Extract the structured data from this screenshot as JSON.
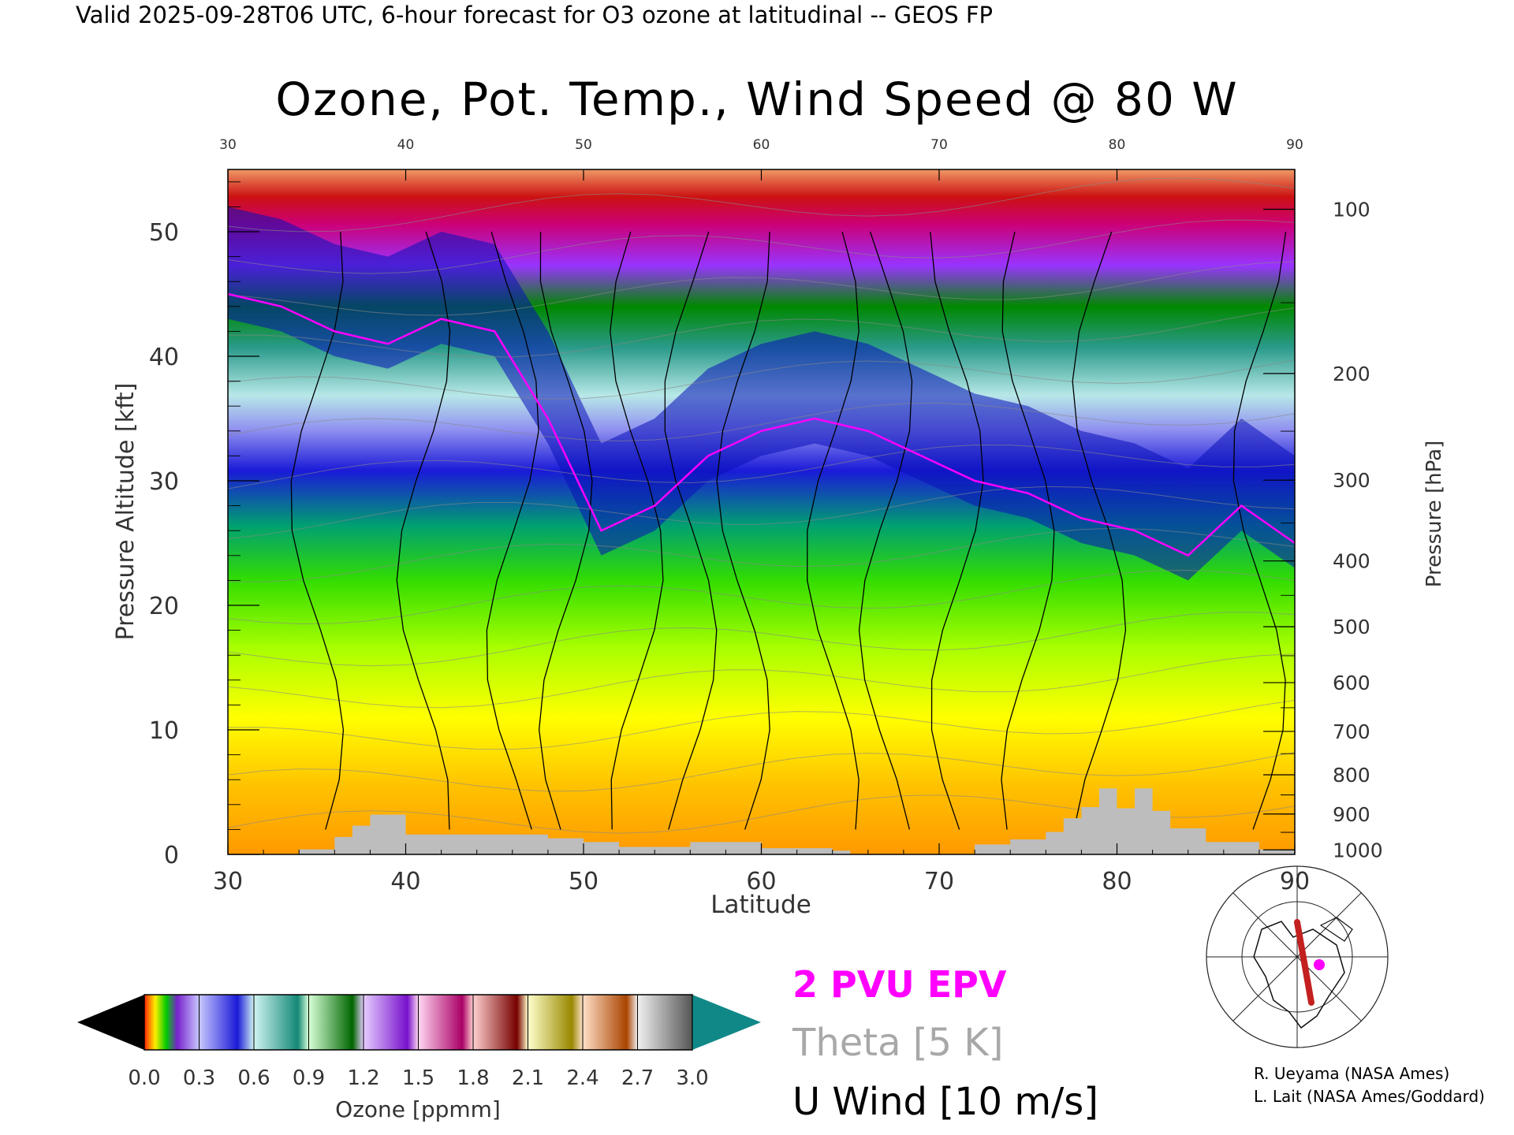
{
  "header": {
    "valid_line": "Valid 2025-09-28T06 UTC, 6-hour forecast for O3 ozone at latitudinal -- GEOS FP",
    "title": "Ozone, Pot. Temp., Wind Speed @ 80 W"
  },
  "chart_data": {
    "type": "heatmap",
    "title": "Ozone, Pot. Temp., Wind Speed @ 80 W",
    "xlabel": "Latitude",
    "ylabel": "Pressure Altitude [kft]",
    "y2label": "Pressure [hPa]",
    "xlim": [
      30,
      90
    ],
    "ylim": [
      0,
      55
    ],
    "x_ticks": [
      "30",
      "40",
      "50",
      "60",
      "70",
      "80",
      "90"
    ],
    "y_ticks": [
      "0",
      "10",
      "20",
      "30",
      "40",
      "50"
    ],
    "y2_ticks": [
      "100",
      "200",
      "300",
      "400",
      "500",
      "600",
      "700",
      "800",
      "900",
      "1000"
    ],
    "colorbar": {
      "label": "Ozone [ppmm]",
      "range": [
        0.0,
        3.0
      ],
      "tick_labels": [
        "0.0",
        "0.3",
        "0.6",
        "0.9",
        "1.2",
        "1.5",
        "1.8",
        "2.1",
        "2.4",
        "2.7",
        "3.0"
      ]
    },
    "tropopause_kft_by_latitude": {
      "lat": [
        30,
        33,
        36,
        39,
        42,
        45,
        48,
        51,
        54,
        57,
        60,
        63,
        66,
        69,
        72,
        75,
        78,
        81,
        84,
        87,
        90
      ],
      "kft": [
        46,
        45,
        43,
        42,
        44,
        43,
        36,
        27,
        29,
        33,
        35,
        36,
        35,
        33,
        31,
        30,
        28,
        27,
        25,
        29,
        26
      ]
    },
    "surface_kft_by_latitude": {
      "lat": [
        30,
        33,
        34,
        36,
        37,
        38,
        40,
        42,
        46,
        48,
        50,
        52,
        56,
        60,
        64,
        65,
        68,
        72,
        74,
        76,
        77,
        78,
        79,
        80,
        81,
        82,
        83,
        85,
        88,
        90
      ],
      "kft": [
        0,
        0,
        0.4,
        1.4,
        2.3,
        3.2,
        1.6,
        1.6,
        1.6,
        1.3,
        1.0,
        0.6,
        1.0,
        0.5,
        0.3,
        0,
        0,
        0.8,
        1.2,
        1.8,
        2.9,
        3.8,
        5.3,
        3.7,
        5.3,
        3.5,
        2.1,
        1.0,
        0.4,
        0
      ]
    }
  },
  "legend": {
    "epv": "2 PVU EPV",
    "theta": "Theta [5 K]",
    "wind": "U Wind [10 m/s]",
    "colors": {
      "epv": "#ff00ff",
      "theta": "#a8a8a8",
      "wind": "#000000"
    }
  },
  "credits": {
    "line1": "R. Ueyama (NASA Ames)",
    "line2": "L. Lait (NASA Ames/Goddard)"
  },
  "locator_map": {
    "icon": "globe-map-icon",
    "track_color": "#cc2222",
    "marker_color": "#ff00ff"
  }
}
